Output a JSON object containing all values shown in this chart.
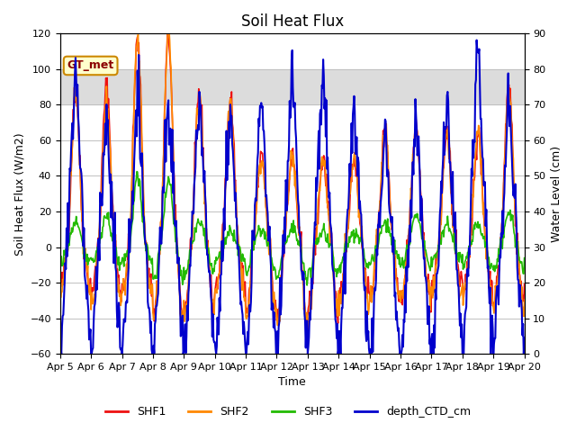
{
  "title": "Soil Heat Flux",
  "xlabel": "Time",
  "ylabel_left": "Soil Heat Flux (W/m2)",
  "ylabel_right": "Water Level (cm)",
  "ylim_left": [
    -60,
    120
  ],
  "ylim_right": [
    0,
    90
  ],
  "shaded_region": [
    80,
    100
  ],
  "legend_labels": [
    "SHF1",
    "SHF2",
    "SHF3",
    "depth_CTD_cm"
  ],
  "colors": {
    "SHF1": "#EE1111",
    "SHF2": "#FF8800",
    "SHF3": "#22BB00",
    "depth_CTD_cm": "#0000CC"
  },
  "linewidths": {
    "SHF1": 1.2,
    "SHF2": 1.2,
    "SHF3": 1.2,
    "depth_CTD_cm": 1.5
  },
  "annotation_text": "GT_met",
  "annotation_color": "#8B0000",
  "annotation_bg": "#FFFFCC",
  "annotation_border": "#CC8800",
  "background_color": "#FFFFFF",
  "shaded_color": "#DCDCDC",
  "grid_color": "#C0C0C0",
  "yticks_left": [
    -60,
    -40,
    -20,
    0,
    20,
    40,
    60,
    80,
    100,
    120
  ],
  "yticks_right": [
    0,
    10,
    20,
    30,
    40,
    50,
    60,
    70,
    80,
    90
  ]
}
